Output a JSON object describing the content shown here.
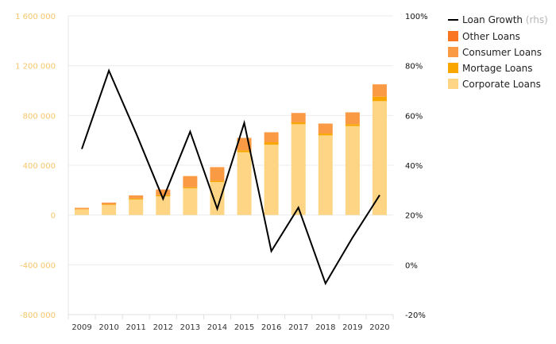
{
  "chart_data": {
    "type": "bar",
    "stacked": true,
    "categories": [
      "2009",
      "2010",
      "2011",
      "2012",
      "2013",
      "2014",
      "2015",
      "2016",
      "2017",
      "2018",
      "2019",
      "2020"
    ],
    "series": [
      {
        "name": "Corporate Loans",
        "color": "#fdd584",
        "values": [
          45000,
          80000,
          125000,
          150000,
          215000,
          265000,
          505000,
          565000,
          730000,
          640000,
          715000,
          915000
        ]
      },
      {
        "name": "Mortage Loans",
        "color": "#f9a700",
        "values": [
          3000,
          5000,
          8000,
          10000,
          8000,
          10000,
          15000,
          20000,
          15000,
          15000,
          15000,
          35000
        ]
      },
      {
        "name": "Consumer Loans",
        "color": "#fb9a45",
        "values": [
          10000,
          15000,
          25000,
          45000,
          90000,
          110000,
          100000,
          80000,
          75000,
          80000,
          95000,
          100000
        ]
      },
      {
        "name": "Other Loans",
        "color": "#f97522",
        "values": [
          0,
          0,
          0,
          0,
          0,
          0,
          0,
          0,
          0,
          0,
          0,
          0
        ]
      }
    ],
    "line_series": {
      "name": "Loan Growth",
      "suffix": "(rhs)",
      "color": "#000000",
      "axis": "right",
      "values": [
        46.5,
        78,
        53,
        26.5,
        53.5,
        22.5,
        57,
        5.5,
        23,
        -7.5,
        11,
        28
      ]
    },
    "left_axis": {
      "ylim": [
        -800000,
        1600000
      ],
      "ticks": [
        -800000,
        -400000,
        0,
        400000,
        800000,
        1200000,
        1600000
      ],
      "tick_labels": [
        "-800 000",
        "-400 000",
        "0",
        "400 000",
        "800 000",
        "1 200 000",
        "1 600 000"
      ]
    },
    "right_axis": {
      "ylim": [
        -20,
        100
      ],
      "ticks": [
        -20,
        0,
        20,
        40,
        60,
        80,
        100
      ],
      "tick_labels": [
        "-20%",
        "0%",
        "20%",
        "40%",
        "60%",
        "80%",
        "100%"
      ]
    },
    "grid": true,
    "legend_position": "top-right",
    "title": "",
    "xlabel": "",
    "ylabel": ""
  }
}
